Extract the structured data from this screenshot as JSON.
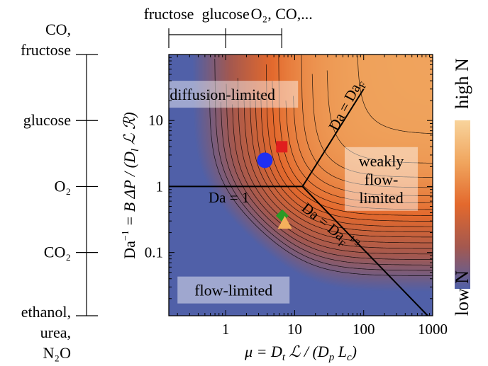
{
  "chart_data": {
    "type": "heatmap",
    "title": "",
    "xlabel": "μ = D_t ℒ / (D_p L_c)",
    "ylabel": "Da⁻¹ = B ΔP / (D_l ℒ ℛ)",
    "x_scale": "log",
    "y_scale": "log",
    "xlim": [
      0.15,
      1000
    ],
    "ylim": [
      0.011,
      100
    ],
    "x_ticks": [
      1,
      10,
      100,
      1000
    ],
    "x_tick_labels": [
      "1",
      "10",
      "100",
      "1000"
    ],
    "y_ticks": [
      0.1,
      1,
      10
    ],
    "y_tick_labels": [
      "0.1",
      "1",
      "10"
    ],
    "colorbar": {
      "top_label": "high N",
      "bottom_label": "low N",
      "colors": [
        "#f8d49c",
        "#f0a55e",
        "#e3692d",
        "#a4584f",
        "#5060a8"
      ]
    },
    "regions": [
      {
        "label": "diffusion-limited",
        "x": 0.9,
        "y": 25
      },
      {
        "label": "weakly flow-limited",
        "lines": [
          "weakly",
          "flow-",
          "limited"
        ],
        "x": 180,
        "y": 1.3
      },
      {
        "label": "flow-limited",
        "x": 1.3,
        "y": 0.027
      }
    ],
    "boundaries": [
      {
        "label": "Da = 1",
        "points": [
          [
            0.15,
            1
          ],
          [
            13,
            1
          ]
        ]
      },
      {
        "label": "Da = Da_F",
        "points": [
          [
            13,
            1
          ],
          [
            100,
            30
          ]
        ],
        "subscript": "F"
      },
      {
        "label": "Da = Da_F^{1/3}",
        "points": [
          [
            13,
            1
          ],
          [
            850,
            0.011
          ]
        ],
        "subscript": "F",
        "superscript": "1/3"
      }
    ],
    "contours": [
      0.45,
      0.35,
      0.26,
      0.18,
      0.11,
      0.04,
      -0.03,
      -0.1,
      -0.17,
      -0.24,
      -0.31,
      -0.38,
      -0.45,
      -0.52,
      -0.59,
      -0.66,
      -0.73,
      -0.8,
      -0.88,
      -0.96,
      -1.04,
      -1.12,
      -1.2,
      -1.28,
      -1.36
    ],
    "markers": [
      {
        "shape": "circle",
        "x": 3.7,
        "y": 2.5,
        "color": "#1f2ff2"
      },
      {
        "shape": "square",
        "x": 6.5,
        "y": 4.0,
        "color": "#e01e1e"
      },
      {
        "shape": "diamond",
        "x": 6.6,
        "y": 0.36,
        "color": "#2a9a26"
      },
      {
        "shape": "triangle",
        "x": 7.2,
        "y": 0.28,
        "color": "#f5b05c"
      }
    ],
    "top_scale": {
      "ticks": [
        {
          "label": "fructose",
          "x": 0.15
        },
        {
          "label": "glucose",
          "x": 1
        },
        {
          "label": "O₂, CO,...",
          "x": 6.5
        }
      ]
    },
    "left_scale": {
      "ticks": [
        {
          "lines": [
            "CO,",
            "fructose"
          ],
          "y": 100
        },
        {
          "lines": [
            "glucose"
          ],
          "y": 10
        },
        {
          "lines": [
            "O₂"
          ],
          "y": 1
        },
        {
          "lines": [
            "CO₂"
          ],
          "y": 0.1
        },
        {
          "lines": [
            "ethanol,",
            "urea,",
            "N₂O"
          ],
          "y": 0.011
        }
      ]
    }
  }
}
